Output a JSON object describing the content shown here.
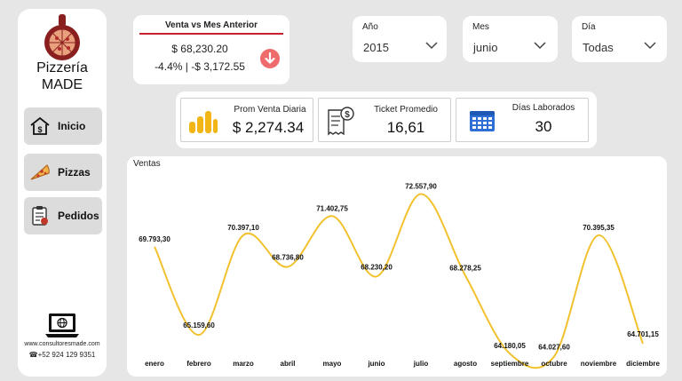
{
  "sidebar": {
    "brand_line1": "Pizzería",
    "brand_line2": "MADE",
    "nav": [
      {
        "label": "Inicio",
        "icon": "house-money-icon"
      },
      {
        "label": "Pizzas",
        "icon": "pizza-slice-icon"
      },
      {
        "label": "Pedidos",
        "icon": "order-clipboard-icon"
      }
    ],
    "website": "www.consultoresmade.com",
    "phone": "☎+52 924 129 9351"
  },
  "venta_card": {
    "title": "Venta vs Mes Anterior",
    "amount": "$ 68,230.20",
    "change": "-4.4% | -$ 3,172.55",
    "trend_icon": "down-arrow-icon",
    "accent": "#c8202f",
    "trend_color": "#ef6a6a"
  },
  "slicers": [
    {
      "label": "Año",
      "value": "2015"
    },
    {
      "label": "Mes",
      "value": "junio"
    },
    {
      "label": "Día",
      "value": "Todas"
    }
  ],
  "kpis": [
    {
      "label": "Prom Venta Diaria",
      "value": "$ 2,274.34",
      "icon": "bar-chart-icon"
    },
    {
      "label": "Ticket Promedio",
      "value": "16,61",
      "icon": "receipt-dollar-icon"
    },
    {
      "label": "Días Laborados",
      "value": "30",
      "icon": "calendar-icon"
    }
  ],
  "chart_data": {
    "type": "line",
    "title": "Ventas",
    "categories": [
      "enero",
      "febrero",
      "marzo",
      "abril",
      "mayo",
      "junio",
      "julio",
      "agosto",
      "septiembre",
      "octubre",
      "noviembre",
      "diciembre"
    ],
    "values": [
      69793.3,
      65159.6,
      70397.1,
      68736.8,
      71402.75,
      68230.2,
      72557.9,
      68278.25,
      64180.05,
      64027.6,
      70395.35,
      64701.15
    ],
    "labels": [
      "69.793,30",
      "65.159,60",
      "70.397,10",
      "68.736,80",
      "71.402,75",
      "68.230,20",
      "72.557,90",
      "68.278,25",
      "64.180,05",
      "64.027,60",
      "70.395,35",
      "64.701,15"
    ],
    "line_color": "#f2c12e",
    "xlabel": "",
    "ylabel": "",
    "ylim": [
      64000,
      73000
    ],
    "grid": false
  }
}
